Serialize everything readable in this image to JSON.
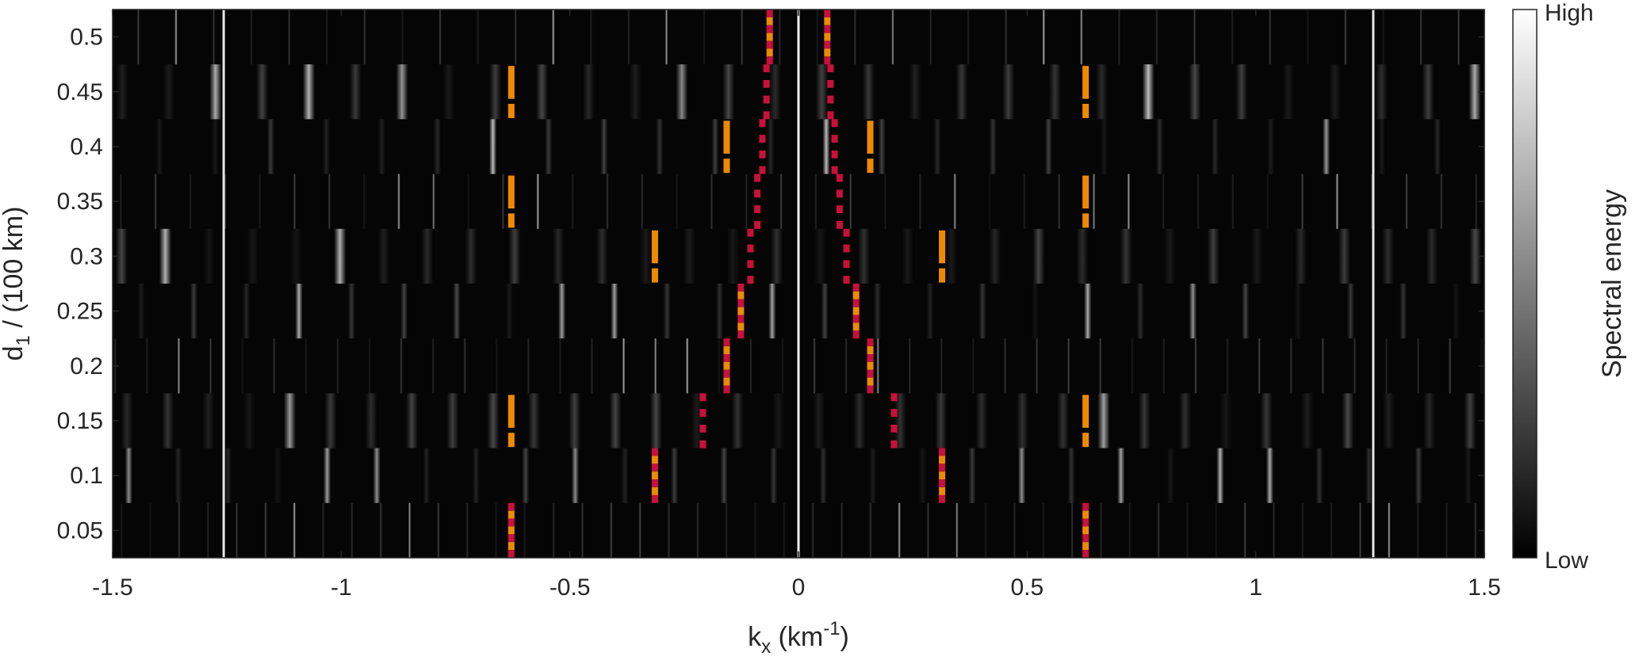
{
  "chart_data": {
    "type": "heatmap",
    "title": "",
    "xlabel": {
      "base": "k",
      "sub": "x",
      "unit_open": " (km",
      "sup": "-1",
      "unit_close": ")"
    },
    "ylabel": {
      "base": "d",
      "sub": "1",
      "rest": " / (100 km)"
    },
    "xlim": [
      -1.5,
      1.5
    ],
    "ylim": [
      0.025,
      0.525
    ],
    "xticks": [
      -1.5,
      -1,
      -0.5,
      0,
      0.5,
      1,
      1.5
    ],
    "xtick_labels": [
      "-1.5",
      "-1",
      "-0.5",
      "0",
      "0.5",
      "1",
      "1.5"
    ],
    "yticks": [
      0.05,
      0.1,
      0.15,
      0.2,
      0.25,
      0.3,
      0.35,
      0.4,
      0.45,
      0.5
    ],
    "ytick_labels": [
      "0.05",
      "0.1",
      "0.15",
      "0.2",
      "0.25",
      "0.3",
      "0.35",
      "0.4",
      "0.45",
      "0.5"
    ],
    "rows": [
      0.05,
      0.1,
      0.15,
      0.2,
      0.25,
      0.3,
      0.35,
      0.4,
      0.45,
      0.5
    ],
    "colormap": "gray",
    "background_color": "#050505",
    "colorbar": {
      "label": "Spectral energy",
      "high_label": "High",
      "low_label": "Low"
    },
    "constant_lines": [
      {
        "x": -1.257,
        "intensity": 0.9
      },
      {
        "x": 0,
        "intensity": 0.95
      },
      {
        "x": 1.257,
        "intensity": 0.9
      }
    ],
    "orange_markers": [
      {
        "x": -0.628,
        "d1": [
          0.15,
          0.35,
          0.45
        ]
      },
      {
        "x": 0.628,
        "d1": [
          0.15,
          0.35,
          0.45
        ]
      },
      {
        "x": -0.314,
        "d1": [
          0.3
        ]
      },
      {
        "x": 0.314,
        "d1": [
          0.3
        ]
      },
      {
        "x": -0.157,
        "d1": [
          0.4
        ]
      },
      {
        "x": 0.157,
        "d1": [
          0.4
        ]
      }
    ],
    "red_dotted_markers": [
      {
        "d1": 0.05,
        "kx": [
          -0.628,
          0.628
        ],
        "style": "red-orange"
      },
      {
        "d1": 0.1,
        "kx": [
          -0.314,
          0.314
        ],
        "style": "red-orange"
      },
      {
        "d1": 0.15,
        "kx": [
          -0.209,
          0.209
        ],
        "style": "red"
      },
      {
        "d1": 0.2,
        "kx": [
          -0.157,
          0.157
        ],
        "style": "red-orange"
      },
      {
        "d1": 0.25,
        "kx": [
          -0.126,
          0.126
        ],
        "style": "red-orange"
      },
      {
        "d1": 0.3,
        "kx": [
          -0.105,
          0.105
        ],
        "style": "red"
      },
      {
        "d1": 0.35,
        "kx": [
          -0.09,
          0.09
        ],
        "style": "red"
      },
      {
        "d1": 0.4,
        "kx": [
          -0.079,
          0.079
        ],
        "style": "red"
      },
      {
        "d1": 0.45,
        "kx": [
          -0.07,
          0.07
        ],
        "style": "red"
      },
      {
        "d1": 0.5,
        "kx": [
          -0.063,
          0.063
        ],
        "style": "red-orange"
      }
    ],
    "marker_colors": {
      "orange": "#ee8a00",
      "red": "#c8103c"
    }
  }
}
